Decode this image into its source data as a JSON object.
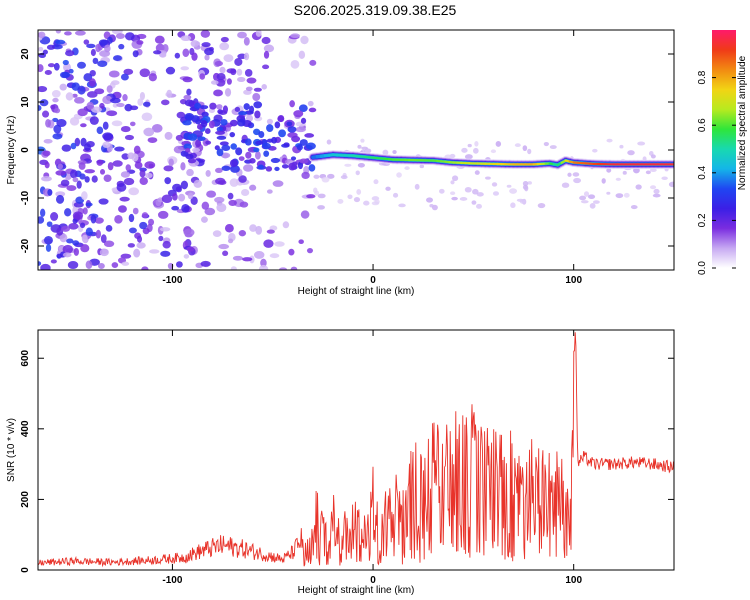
{
  "page_title": "S206.2025.319.09.38.E25",
  "chart_data": [
    {
      "type": "heatmap",
      "title": "S206.2025.319.09.38.E25",
      "xlabel": "Height of straight line (km)",
      "ylabel": "Frequency (Hz)",
      "xlim": [
        -167,
        150
      ],
      "ylim": [
        -25,
        25
      ],
      "x_ticks": [
        -100,
        0,
        100
      ],
      "y_ticks": [
        -20,
        -10,
        0,
        10,
        20
      ],
      "colorbar": {
        "label": "Normalized spectral amplitude",
        "range": [
          0,
          1
        ],
        "ticks": [
          0.0,
          0.2,
          0.4,
          0.6,
          0.8
        ],
        "colors": [
          "#ffffff",
          "#c7a9f2",
          "#7a2de0",
          "#3b1fe6",
          "#1f46f2",
          "#14b6e8",
          "#18d9b0",
          "#2fe63a",
          "#b8ea1f",
          "#f2d414",
          "#f28a12",
          "#f03a18",
          "#ff1a6a"
        ]
      },
      "signal_track": {
        "x": [
          -30,
          -20,
          -10,
          0,
          10,
          20,
          30,
          40,
          50,
          60,
          70,
          80,
          88,
          92,
          96,
          100,
          110,
          120,
          130,
          140,
          150
        ],
        "frequency": [
          -1.5,
          -1.0,
          -1.2,
          -1.6,
          -2.0,
          -2.1,
          -2.2,
          -2.6,
          -2.8,
          -2.9,
          -3.0,
          -3.0,
          -2.8,
          -3.1,
          -2.2,
          -2.6,
          -2.9,
          -3.0,
          -3.0,
          -3.0,
          -3.0
        ],
        "amplitude": [
          0.35,
          0.45,
          0.5,
          0.55,
          0.6,
          0.62,
          0.6,
          0.65,
          0.7,
          0.72,
          0.78,
          0.8,
          0.6,
          0.5,
          0.7,
          0.85,
          0.9,
          0.95,
          0.95,
          0.95,
          0.95
        ]
      },
      "noise_region": {
        "x": [
          -167,
          -30
        ],
        "amplitude": [
          0.05,
          0.35
        ]
      }
    },
    {
      "type": "line",
      "xlabel": "Height of straight line (km)",
      "ylabel": "SNR (10 * v/v)",
      "xlim": [
        -167,
        150
      ],
      "ylim": [
        0,
        680
      ],
      "x_ticks": [
        -100,
        0,
        100
      ],
      "y_ticks": [
        0,
        200,
        400,
        600
      ],
      "series": [
        {
          "color": "#e8332a",
          "x": [
            -167,
            -150,
            -130,
            -110,
            -95,
            -85,
            -75,
            -65,
            -55,
            -45,
            -40,
            -35,
            -30,
            -28,
            -25,
            -20,
            -15,
            -10,
            -5,
            0,
            5,
            10,
            15,
            20,
            25,
            30,
            35,
            40,
            45,
            50,
            55,
            60,
            65,
            70,
            75,
            80,
            85,
            90,
            95,
            98,
            100,
            101,
            102,
            105,
            110,
            120,
            130,
            140,
            150
          ],
          "y": [
            20,
            25,
            22,
            28,
            35,
            55,
            70,
            60,
            45,
            30,
            50,
            90,
            170,
            270,
            160,
            230,
            150,
            240,
            180,
            300,
            220,
            310,
            260,
            390,
            330,
            430,
            400,
            470,
            440,
            480,
            420,
            410,
            380,
            420,
            350,
            380,
            340,
            330,
            360,
            160,
            600,
            680,
            300,
            320,
            300,
            300,
            305,
            300,
            290
          ]
        }
      ]
    }
  ]
}
